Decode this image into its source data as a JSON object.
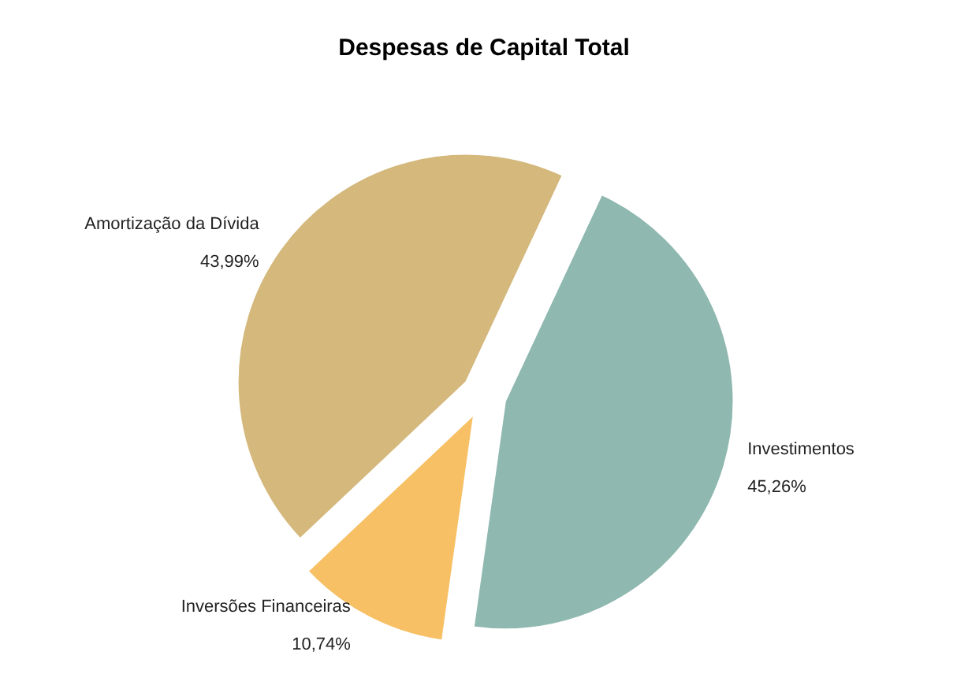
{
  "chart_data": {
    "type": "pie",
    "title": "Despesas de Capital Total",
    "categories": [
      "Investimentos",
      "Inversões Financeiras",
      "Amortização da Dívida"
    ],
    "values": [
      45.26,
      10.74,
      43.99
    ],
    "value_labels": [
      "45,26%",
      "10,74%",
      "43,99%"
    ],
    "colors": [
      "#8fb8b0",
      "#f7c065",
      "#d4b87c"
    ],
    "legend": false
  }
}
